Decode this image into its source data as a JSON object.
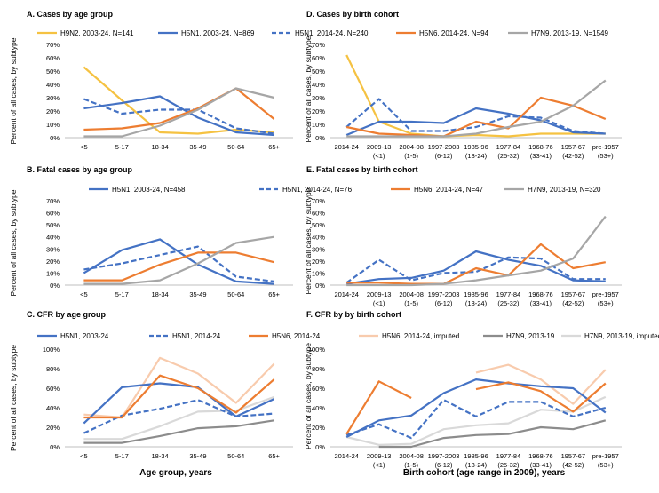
{
  "figure": {
    "left_xlabel": "Age group, years",
    "right_xlabel": "Birth cohort (age range in 2009), years",
    "ylabel": "Percent of all cases, by subtype"
  },
  "colors": {
    "blue": "#4472c4",
    "orange": "#ed7d31",
    "yellow": "#f5c242",
    "gray": "#a6a6a6",
    "peach": "#f8cbad",
    "darkgray": "#8c8c8c",
    "lightgray": "#d9d9d9",
    "axis": "#bfbfbf",
    "text": "#000000"
  },
  "chart_data": [
    {
      "id": "A",
      "type": "line",
      "title": "A. Cases by age group",
      "categories": [
        "<5",
        "5-17",
        "18-34",
        "35-49",
        "50-64",
        "65+"
      ],
      "ylim": [
        0,
        70
      ],
      "yticks": [
        "0%",
        "10%",
        "20%",
        "30%",
        "40%",
        "50%",
        "60%",
        "70%"
      ],
      "series": [
        {
          "name": "H9N2, 2003-24, N=141",
          "color": "yellow",
          "dash": false,
          "values": [
            53,
            28,
            4,
            3,
            6,
            4
          ]
        },
        {
          "name": "H5N1, 2003-24, N=869",
          "color": "blue",
          "dash": false,
          "values": [
            22,
            26,
            31,
            15,
            4,
            2
          ]
        },
        {
          "name": "H5N1, 2014-24, N=240",
          "color": "blue",
          "dash": true,
          "values": [
            29,
            18,
            21,
            21,
            7,
            3
          ]
        },
        {
          "name": "H5N6, 2014-24, N=94",
          "color": "orange",
          "dash": false,
          "values": [
            6,
            7,
            11,
            22,
            37,
            14
          ]
        },
        {
          "name": "H7N9, 2013-19, N=1549",
          "color": "gray",
          "dash": false,
          "values": [
            1,
            1,
            9,
            21,
            37,
            30
          ]
        }
      ]
    },
    {
      "id": "D",
      "type": "line",
      "title": "D. Cases by birth cohort",
      "categories": [
        "2014-24",
        "2009-13\n(<1)",
        "2004-08\n(1-5)",
        "1997-2003\n(6-12)",
        "1985-96\n(13-24)",
        "1977-84\n(25-32)",
        "1968-76\n(33-41)",
        "1957-67\n(42-52)",
        "pre-1957\n(53+)"
      ],
      "ylim": [
        0,
        70
      ],
      "yticks": [
        "0%",
        "10%",
        "20%",
        "30%",
        "40%",
        "50%",
        "60%",
        "70%"
      ],
      "series": [
        {
          "name": "H9N2",
          "color": "yellow",
          "dash": false,
          "values": [
            62,
            12,
            3,
            1,
            2,
            1,
            3,
            3,
            3
          ]
        },
        {
          "name": "H5N1, 2003-24",
          "color": "blue",
          "dash": false,
          "values": [
            2,
            12,
            12,
            11,
            22,
            18,
            13,
            4,
            3
          ]
        },
        {
          "name": "H5N1, 2014-24",
          "color": "blue",
          "dash": true,
          "values": [
            8,
            29,
            5,
            5,
            8,
            16,
            15,
            5,
            3
          ]
        },
        {
          "name": "H5N6",
          "color": "orange",
          "dash": false,
          "values": [
            8,
            3,
            2,
            1,
            12,
            7,
            30,
            24,
            14
          ]
        },
        {
          "name": "H7N9",
          "color": "gray",
          "dash": false,
          "values": [
            1,
            1,
            1,
            1,
            3,
            8,
            12,
            24,
            43
          ]
        }
      ]
    },
    {
      "id": "B",
      "type": "line",
      "title": "B. Fatal cases by age group",
      "categories": [
        "<5",
        "5-17",
        "18-34",
        "35-49",
        "50-64",
        "65+"
      ],
      "ylim": [
        0,
        70
      ],
      "yticks": [
        "0%",
        "10%",
        "20%",
        "30%",
        "40%",
        "50%",
        "60%",
        "70%"
      ],
      "series": [
        {
          "name": "H5N1, 2003-24, N=458",
          "color": "blue",
          "dash": false,
          "values": [
            10,
            29,
            38,
            17,
            3,
            1
          ]
        },
        {
          "name": "H5N1, 2014-24, N=76",
          "color": "blue",
          "dash": true,
          "values": [
            13,
            18,
            25,
            32,
            7,
            3
          ]
        },
        {
          "name": "H5N6, 2014-24, N=47",
          "color": "orange",
          "dash": false,
          "values": [
            4,
            4,
            17,
            27,
            27,
            19
          ]
        },
        {
          "name": "H7N9, 2013-19, N=320",
          "color": "gray",
          "dash": false,
          "values": [
            1,
            1,
            4,
            18,
            35,
            40
          ]
        }
      ]
    },
    {
      "id": "E",
      "type": "line",
      "title": "E. Fatal cases by birth cohort",
      "categories": [
        "2014-24",
        "2009-13\n(<1)",
        "2004-08\n(1-5)",
        "1997-2003\n(6-12)",
        "1985-96\n(13-24)",
        "1977-84\n(25-32)",
        "1968-76\n(33-41)",
        "1957-67\n(42-52)",
        "pre-1957\n(53+)"
      ],
      "ylim": [
        0,
        70
      ],
      "yticks": [
        "0%",
        "10%",
        "20%",
        "30%",
        "40%",
        "50%",
        "60%",
        "70%"
      ],
      "series": [
        {
          "name": "H5N1, 2003-24",
          "color": "blue",
          "dash": false,
          "values": [
            1,
            5,
            6,
            12,
            28,
            21,
            16,
            4,
            3
          ]
        },
        {
          "name": "H5N1, 2014-24",
          "color": "blue",
          "dash": true,
          "values": [
            2,
            21,
            4,
            10,
            11,
            23,
            22,
            5,
            5
          ]
        },
        {
          "name": "H5N6",
          "color": "orange",
          "dash": false,
          "values": [
            2,
            2,
            1,
            1,
            14,
            8,
            34,
            14,
            19
          ]
        },
        {
          "name": "H7N9",
          "color": "gray",
          "dash": false,
          "values": [
            0,
            0,
            0,
            1,
            4,
            8,
            12,
            22,
            57
          ]
        }
      ]
    },
    {
      "id": "C",
      "type": "line",
      "title": "C. CFR by age group",
      "categories": [
        "<5",
        "5-17",
        "18-34",
        "35-49",
        "50-64",
        "65+"
      ],
      "ylim": [
        0,
        100
      ],
      "yticks": [
        "0%",
        "20%",
        "40%",
        "60%",
        "80%",
        "100%"
      ],
      "series": [
        {
          "name": "H5N6, 2014-24, imputed",
          "color": "peach",
          "dash": false,
          "values": [
            33,
            30,
            91,
            75,
            45,
            85
          ]
        },
        {
          "name": "H7N9, 2013-19, imputed",
          "color": "lightgray",
          "dash": false,
          "values": [
            8,
            8,
            21,
            36,
            37,
            51
          ]
        },
        {
          "name": "H7N9, 2013-19",
          "color": "darkgray",
          "dash": false,
          "values": [
            4,
            4,
            11,
            19,
            21,
            27
          ]
        },
        {
          "name": "H5N1, 2003-24",
          "color": "blue",
          "dash": false,
          "values": [
            24,
            61,
            65,
            61,
            31,
            49
          ]
        },
        {
          "name": "H5N1, 2014-24",
          "color": "blue",
          "dash": true,
          "values": [
            14,
            32,
            39,
            48,
            31,
            34
          ]
        },
        {
          "name": "H5N6, 2014-24",
          "color": "orange",
          "dash": false,
          "values": [
            30,
            30,
            73,
            60,
            35,
            69
          ]
        }
      ]
    },
    {
      "id": "F",
      "type": "line",
      "title": "F. CFR by by birth cohort",
      "categories": [
        "2014-24",
        "2009-13\n(<1)",
        "2004-08\n(1-5)",
        "1997-2003\n(6-12)",
        "1985-96\n(13-24)",
        "1977-84\n(25-32)",
        "1968-76\n(33-41)",
        "1957-67\n(42-52)",
        "pre-1957\n(53+)"
      ],
      "ylim": [
        0,
        100
      ],
      "yticks": [
        "0%",
        "20%",
        "40%",
        "60%",
        "80%",
        "100%"
      ],
      "series": [
        {
          "name": "H5N6, 2014-24, imputed",
          "color": "peach",
          "dash": false,
          "values": [
            null,
            null,
            null,
            null,
            76,
            84,
            69,
            44,
            79
          ]
        },
        {
          "name": "H7N9, 2013-19, imputed",
          "color": "lightgray",
          "dash": false,
          "values": [
            10,
            2,
            3,
            18,
            22,
            24,
            38,
            36,
            51
          ]
        },
        {
          "name": "H7N9, 2013-19",
          "color": "darkgray",
          "dash": false,
          "values": [
            null,
            0,
            0,
            9,
            12,
            13,
            20,
            18,
            27
          ]
        },
        {
          "name": "H5N1, 2003-24",
          "color": "blue",
          "dash": false,
          "values": [
            10,
            27,
            32,
            55,
            69,
            65,
            62,
            60,
            35
          ]
        },
        {
          "name": "H5N1, 2014-24",
          "color": "blue",
          "dash": true,
          "values": [
            12,
            23,
            9,
            48,
            31,
            46,
            46,
            31,
            40
          ]
        },
        {
          "name": "H5N6, 2014-24",
          "color": "orange",
          "dash": false,
          "values": [
            13,
            67,
            50,
            null,
            59,
            66,
            57,
            36,
            65
          ]
        }
      ]
    }
  ]
}
